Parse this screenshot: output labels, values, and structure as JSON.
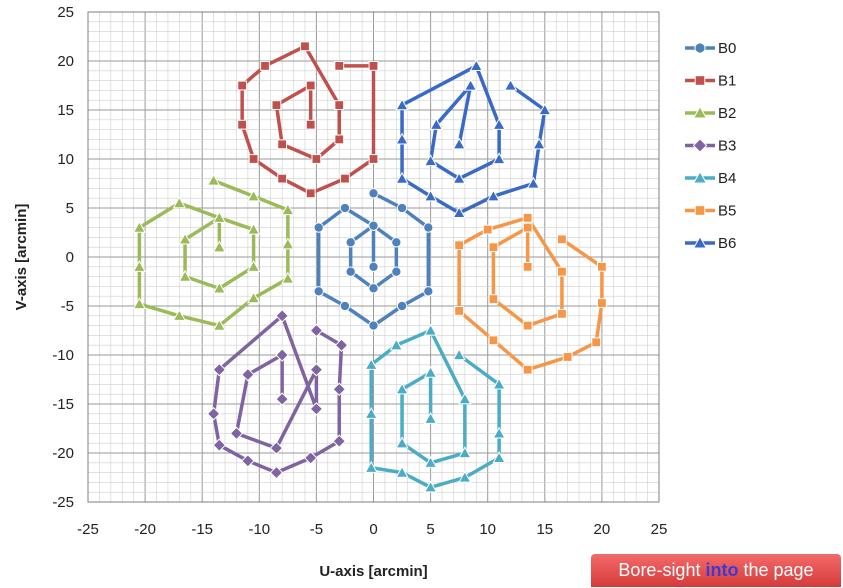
{
  "chart_data": {
    "type": "scatter",
    "xlabel": "U-axis [arcmin]",
    "ylabel": "V-axis [arcmin]",
    "xlim": [
      -25,
      25
    ],
    "ylim": [
      -25,
      25
    ],
    "xticks": [
      "-25",
      "-20",
      "-15",
      "-10",
      "-5",
      "0",
      "5",
      "10",
      "15",
      "20",
      "25"
    ],
    "yticks": [
      "25",
      "20",
      "15",
      "10",
      "5",
      "0",
      "-5",
      "-10",
      "-15",
      "-20",
      "-25"
    ],
    "grid": true,
    "legend_position": "right",
    "series": [
      {
        "name": "B0",
        "marker": "circle",
        "color": "#4f81bd",
        "x": [
          0,
          0,
          -2,
          -2,
          0,
          2,
          2,
          0,
          -2.5,
          -4.8,
          -4.8,
          -2.5,
          0,
          2.5,
          4.8,
          4.8,
          2.5,
          0
        ],
        "y": [
          -1,
          3.2,
          1.5,
          -1.5,
          -3.2,
          -1.5,
          1.5,
          3.2,
          5,
          3,
          -3.5,
          -5,
          -7,
          -5,
          -3.5,
          3,
          5,
          6.5
        ]
      },
      {
        "name": "B1",
        "marker": "square",
        "color": "#c0504d",
        "x": [
          -5.5,
          -5.5,
          -8.5,
          -8,
          -5,
          -3,
          -3,
          -6,
          -9.5,
          -11.5,
          -11.5,
          -10.5,
          -8,
          -5.5,
          -2.5,
          0,
          0,
          -3
        ],
        "y": [
          13.5,
          17.5,
          15.5,
          11.5,
          10,
          12,
          15.5,
          21.5,
          19.5,
          17.5,
          13.5,
          10,
          8,
          6.5,
          8,
          10,
          19.5,
          19.5
        ]
      },
      {
        "name": "B2",
        "marker": "triangle",
        "color": "#9bbb59",
        "x": [
          -13.5,
          -13.5,
          -16.5,
          -16.5,
          -13.5,
          -10.5,
          -10.5,
          -13.5,
          -17,
          -20.5,
          -20.5,
          -20.5,
          -17,
          -13.5,
          -10.5,
          -7.5,
          -7.5,
          -7.5,
          -10.5,
          -14
        ],
        "y": [
          1,
          4,
          1.8,
          -2,
          -3.2,
          -1,
          2.8,
          4,
          5.5,
          3,
          -1,
          -4.8,
          -6,
          -7,
          -4.2,
          -2.2,
          1.3,
          4.8,
          6.2,
          7.8
        ]
      },
      {
        "name": "B3",
        "marker": "diamond",
        "color": "#8064a2",
        "x": [
          -8,
          -8,
          -11,
          -12,
          -8.5,
          -5,
          -5,
          -8,
          -13.5,
          -14,
          -13.5,
          -11,
          -8.5,
          -5.5,
          -3,
          -3,
          -2.8,
          -5
        ],
        "y": [
          -14.5,
          -10,
          -12,
          -18,
          -19.5,
          -11.5,
          -15.5,
          -6,
          -11.5,
          -16,
          -19.2,
          -20.8,
          -22,
          -20.5,
          -18.8,
          -13.5,
          -9,
          -7.5
        ]
      },
      {
        "name": "B4",
        "marker": "triangle",
        "color": "#4bacc6",
        "x": [
          5,
          5,
          2.5,
          2.5,
          5,
          8,
          8,
          5,
          2,
          -0.2,
          -0.2,
          -0.2,
          2.5,
          5,
          8,
          11,
          11,
          11,
          11,
          7.5
        ],
        "y": [
          -16.5,
          -11.8,
          -13.5,
          -19,
          -21,
          -20,
          -14.5,
          -7.5,
          -9,
          -11,
          -16,
          -21.5,
          -22,
          -23.5,
          -22.5,
          -20.5,
          -18,
          -13,
          -13,
          -10
        ]
      },
      {
        "name": "B5",
        "marker": "square",
        "color": "#f79646",
        "x": [
          13.5,
          13.5,
          10.5,
          10.5,
          13.5,
          16.5,
          16.5,
          13.5,
          10,
          7.5,
          7.5,
          10.5,
          13.5,
          17,
          19.5,
          20,
          20,
          16.5
        ],
        "y": [
          -1,
          3,
          1,
          -4.3,
          -7,
          -5.8,
          -1.5,
          4,
          2.8,
          1.2,
          -5.5,
          -8.5,
          -11.5,
          -10.2,
          -8.7,
          -4.7,
          -1,
          1.8
        ]
      },
      {
        "name": "B6",
        "marker": "triangle",
        "color": "#3a6ac7",
        "x": [
          7.5,
          8.5,
          5.5,
          5,
          7.5,
          11,
          11,
          9,
          2.5,
          2.5,
          2.5,
          5,
          7.5,
          10.5,
          14,
          14.5,
          15,
          12
        ],
        "y": [
          11.5,
          17.5,
          13.5,
          9.8,
          8,
          10,
          13.5,
          19.5,
          15.5,
          12,
          8,
          6.2,
          4.5,
          6.2,
          7.5,
          11.5,
          15,
          17.5
        ]
      }
    ],
    "annotation": "Bore-sight",
    "annotation_highlight": "into",
    "annotation_tail": "the page"
  }
}
